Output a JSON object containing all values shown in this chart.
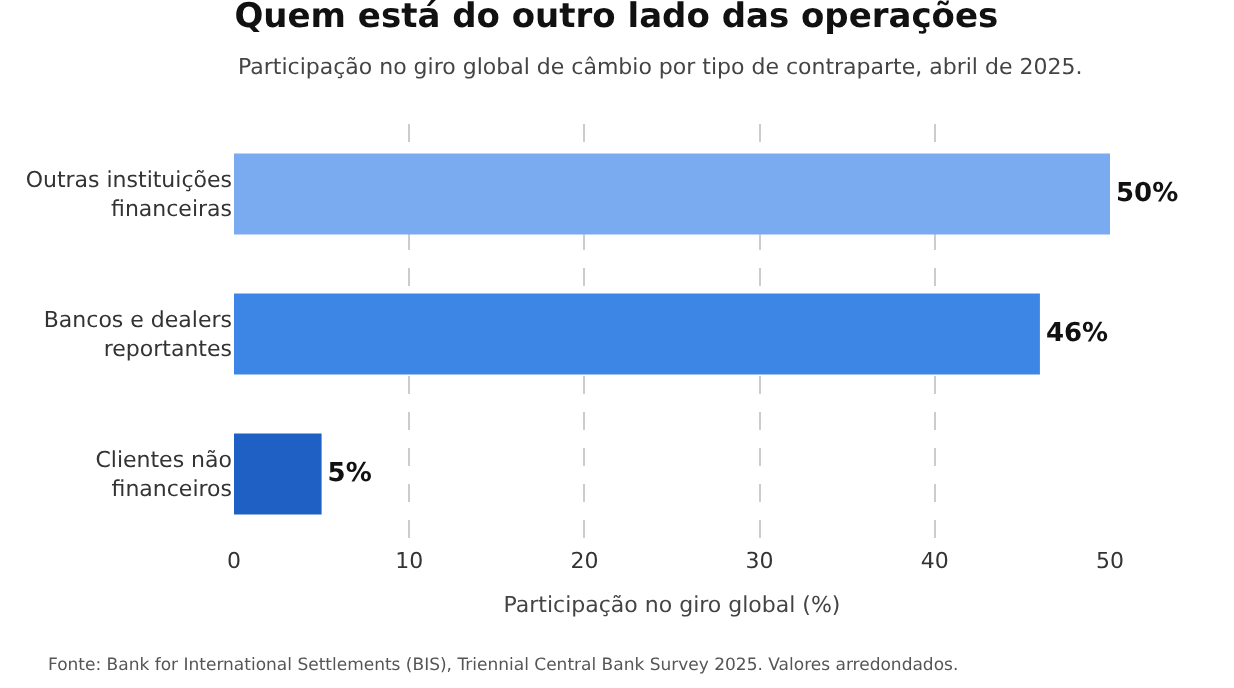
{
  "chart_data": {
    "type": "bar",
    "orientation": "horizontal",
    "title": "Quem está do outro lado das operações",
    "subtitle": "Participação no giro global de câmbio por tipo de contraparte, abril de 2025.",
    "xlabel": "Participação no giro global (%)",
    "categories": [
      "Outras instituições financeiras",
      "Bancos e dealers reportantes",
      "Clientes não financeiros"
    ],
    "values": [
      50,
      46,
      5
    ],
    "colors": [
      "#7aaaf0",
      "#3d86e6",
      "#1f60c4"
    ],
    "value_labels": [
      "50%",
      "46%",
      "5%"
    ],
    "xlim": [
      0,
      50
    ],
    "xticks": [
      0,
      10,
      20,
      30,
      40,
      50
    ],
    "grid": "x",
    "annotations": [
      "Fonte: Bank for International Settlements (BIS), Triennial Central Bank Survey 2025. Valores arredondados."
    ]
  }
}
